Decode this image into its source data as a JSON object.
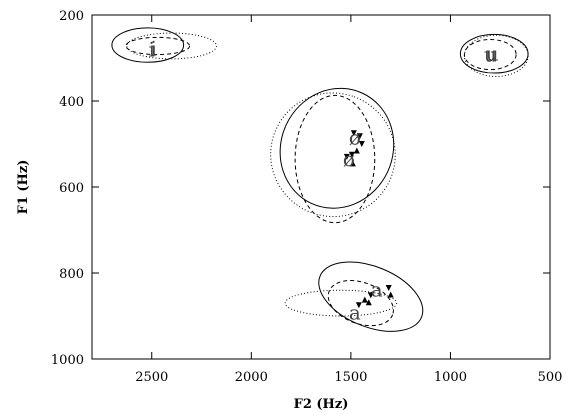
{
  "chart_data": {
    "type": "scatter",
    "xlabel": "F2 (Hz)",
    "ylabel": "F1 (Hz)",
    "xlim": [
      2800,
      500
    ],
    "ylim": [
      1000,
      200
    ],
    "x_reversed": true,
    "y_reversed": true,
    "grid": false,
    "xticks": [
      2500,
      2000,
      1500,
      1000,
      500
    ],
    "yticks": [
      200,
      400,
      600,
      800,
      1000
    ],
    "vowel_labels": [
      {
        "text": "i",
        "x": 2500,
        "y": 280
      },
      {
        "text": "i",
        "x": 2490,
        "y": 278
      },
      {
        "text": "u",
        "x": 800,
        "y": 292
      },
      {
        "text": "u",
        "x": 790,
        "y": 290
      },
      {
        "text": "ø",
        "x": 1510,
        "y": 535
      },
      {
        "text": "ø",
        "x": 1480,
        "y": 485
      },
      {
        "text": "a",
        "x": 1480,
        "y": 892
      },
      {
        "text": "a",
        "x": 1370,
        "y": 838
      }
    ],
    "series": [
      {
        "style": "solid",
        "ellipses": [
          {
            "cx": 2520,
            "cy": 270,
            "rx": 180,
            "ry": 40,
            "angle": 0
          },
          {
            "cx": 780,
            "cy": 290,
            "rx": 170,
            "ry": 45,
            "angle": 0
          },
          {
            "cx": 1570,
            "cy": 510,
            "rx": 305,
            "ry": 130,
            "angle": -65
          },
          {
            "cx": 1400,
            "cy": 855,
            "rx": 275,
            "ry": 70,
            "angle": 22
          }
        ],
        "points": []
      },
      {
        "style": "dashed",
        "ellipses": [
          {
            "cx": 2470,
            "cy": 272,
            "rx": 160,
            "ry": 20,
            "angle": 0
          },
          {
            "cx": 800,
            "cy": 292,
            "rx": 130,
            "ry": 35,
            "angle": 0
          },
          {
            "cx": 1580,
            "cy": 535,
            "rx": 200,
            "ry": 148,
            "angle": 0
          },
          {
            "cx": 1450,
            "cy": 870,
            "rx": 170,
            "ry": 48,
            "angle": 20
          }
        ],
        "points": []
      },
      {
        "style": "dotted",
        "ellipses": [
          {
            "cx": 2400,
            "cy": 272,
            "rx": 225,
            "ry": 30,
            "angle": 0
          },
          {
            "cx": 770,
            "cy": 295,
            "rx": 160,
            "ry": 48,
            "angle": 0
          },
          {
            "cx": 1590,
            "cy": 525,
            "rx": 310,
            "ry": 145,
            "angle": -70
          },
          {
            "cx": 1550,
            "cy": 870,
            "rx": 280,
            "ry": 30,
            "angle": 0
          }
        ],
        "points": [
          {
            "x": 1485,
            "y": 475,
            "marker": "tri-down"
          },
          {
            "x": 1455,
            "y": 482,
            "marker": "tri-down"
          },
          {
            "x": 1445,
            "y": 500,
            "marker": "tri-down"
          },
          {
            "x": 1470,
            "y": 515,
            "marker": "tri-up"
          },
          {
            "x": 1495,
            "y": 525,
            "marker": "tri-down"
          },
          {
            "x": 1520,
            "y": 530,
            "marker": "tri-down"
          },
          {
            "x": 1490,
            "y": 545,
            "marker": "tri-up"
          },
          {
            "x": 1310,
            "y": 835,
            "marker": "tri-down"
          },
          {
            "x": 1300,
            "y": 850,
            "marker": "tri-up"
          },
          {
            "x": 1400,
            "y": 852,
            "marker": "tri-down"
          },
          {
            "x": 1430,
            "y": 862,
            "marker": "tri-up"
          },
          {
            "x": 1410,
            "y": 868,
            "marker": "tri-up"
          },
          {
            "x": 1460,
            "y": 875,
            "marker": "tri-down"
          }
        ]
      }
    ]
  }
}
